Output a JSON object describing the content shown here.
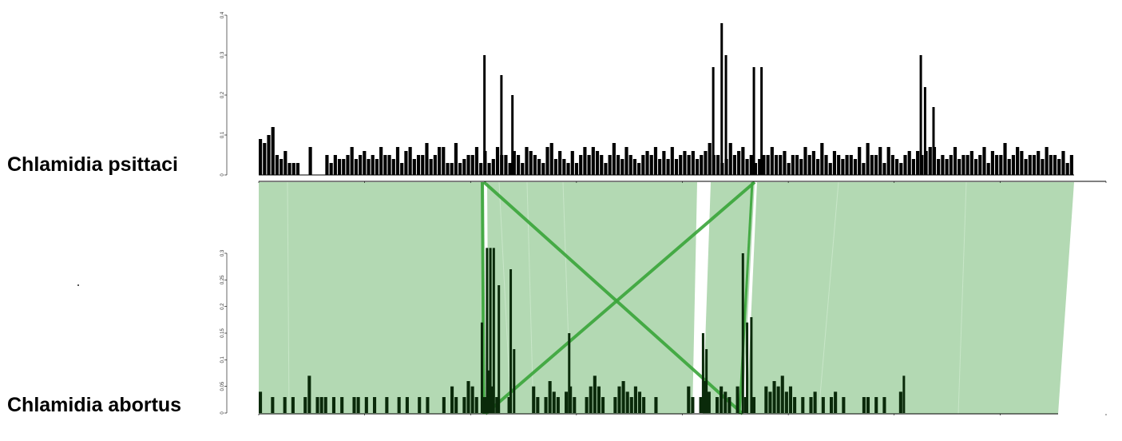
{
  "genomes": {
    "top": {
      "name": "Chlamidia psittaci"
    },
    "bottom": {
      "name": "Chlamidia abortus"
    }
  },
  "colors": {
    "block_fill": "#b3d9b3",
    "inversion_line": "#3aa53a",
    "top_bars": "#000000",
    "bottom_bars": "#0a2a0a",
    "axis": "#000000"
  },
  "chart_data": [
    {
      "type": "bar",
      "series": [
        {
          "name": "Chlamidia psittaci",
          "values": [
            0.09,
            0.08,
            0.1,
            0.12,
            0.05,
            0.04,
            0.06,
            0.03,
            0.03,
            0.03,
            0.0,
            0.0,
            0.07,
            0.0,
            0.0,
            0.0,
            0.05,
            0.03,
            0.05,
            0.04,
            0.04,
            0.05,
            0.07,
            0.04,
            0.05,
            0.06,
            0.04,
            0.05,
            0.04,
            0.07,
            0.05,
            0.05,
            0.04,
            0.07,
            0.03,
            0.06,
            0.07,
            0.04,
            0.05,
            0.05,
            0.08,
            0.04,
            0.05,
            0.07,
            0.07,
            0.03,
            0.03,
            0.08,
            0.03,
            0.04,
            0.05,
            0.05,
            0.07,
            0.03,
            0.06,
            0.03,
            0.04,
            0.07,
            0.05,
            0.05,
            0.03,
            0.06,
            0.05,
            0.03,
            0.07,
            0.06,
            0.05,
            0.04,
            0.03,
            0.07,
            0.08,
            0.04,
            0.06,
            0.04,
            0.03,
            0.06,
            0.03,
            0.05,
            0.07,
            0.05,
            0.07,
            0.06,
            0.05,
            0.03,
            0.05,
            0.08,
            0.05,
            0.04,
            0.07,
            0.05,
            0.04,
            0.03,
            0.05,
            0.06,
            0.05,
            0.07,
            0.04,
            0.06,
            0.04,
            0.07,
            0.04,
            0.05,
            0.06,
            0.05,
            0.06,
            0.04,
            0.05,
            0.06,
            0.08,
            0.05,
            0.05,
            0.03,
            0.04,
            0.08,
            0.05,
            0.06,
            0.07,
            0.04,
            0.05,
            0.03,
            0.04,
            0.05,
            0.05,
            0.07,
            0.05,
            0.05,
            0.06,
            0.03,
            0.05,
            0.05,
            0.04,
            0.07,
            0.05,
            0.06,
            0.04,
            0.08,
            0.05,
            0.03,
            0.06,
            0.05,
            0.04,
            0.05,
            0.05,
            0.04,
            0.07,
            0.03,
            0.08,
            0.05,
            0.05,
            0.07,
            0.03,
            0.07,
            0.05,
            0.04,
            0.03,
            0.05,
            0.06,
            0.04,
            0.06,
            0.05,
            0.06,
            0.07,
            0.07,
            0.04,
            0.05,
            0.04,
            0.05,
            0.07,
            0.04,
            0.05,
            0.05,
            0.06,
            0.04,
            0.05,
            0.07,
            0.03,
            0.06,
            0.05,
            0.05,
            0.08,
            0.04,
            0.05,
            0.07,
            0.06,
            0.04,
            0.05,
            0.05,
            0.06,
            0.04,
            0.07,
            0.05,
            0.05,
            0.04,
            0.06,
            0.03,
            0.05
          ]
        }
      ],
      "ylim": [
        0,
        0.4
      ],
      "yticks": [
        "0",
        "0.1",
        "0.2",
        "0.3",
        "0.4"
      ],
      "peaks": [
        {
          "x_frac": 0.265,
          "value": 0.3
        },
        {
          "x_frac": 0.285,
          "value": 0.25
        },
        {
          "x_frac": 0.298,
          "value": 0.2
        },
        {
          "x_frac": 0.535,
          "value": 0.27
        },
        {
          "x_frac": 0.545,
          "value": 0.38
        },
        {
          "x_frac": 0.55,
          "value": 0.3
        },
        {
          "x_frac": 0.583,
          "value": 0.27
        },
        {
          "x_frac": 0.592,
          "value": 0.27
        },
        {
          "x_frac": 0.78,
          "value": 0.3
        },
        {
          "x_frac": 0.785,
          "value": 0.22
        },
        {
          "x_frac": 0.795,
          "value": 0.17
        }
      ]
    },
    {
      "type": "bar",
      "series": [
        {
          "name": "Chlamidia abortus",
          "values": [
            0.04,
            0.0,
            0.0,
            0.03,
            0.0,
            0.0,
            0.03,
            0.0,
            0.03,
            0.0,
            0.0,
            0.03,
            0.07,
            0.0,
            0.03,
            0.03,
            0.03,
            0.0,
            0.03,
            0.0,
            0.03,
            0.0,
            0.0,
            0.03,
            0.03,
            0.0,
            0.03,
            0.0,
            0.03,
            0.0,
            0.0,
            0.03,
            0.0,
            0.0,
            0.03,
            0.0,
            0.03,
            0.0,
            0.0,
            0.03,
            0.0,
            0.03,
            0.0,
            0.0,
            0.0,
            0.03,
            0.0,
            0.05,
            0.03,
            0.0,
            0.03,
            0.06,
            0.05,
            0.03,
            0.0,
            0.03,
            0.08,
            0.05,
            0.03,
            0.0,
            0.0,
            0.03,
            0.0,
            0.0,
            0.0,
            0.0,
            0.0,
            0.05,
            0.03,
            0.0,
            0.03,
            0.06,
            0.04,
            0.03,
            0.0,
            0.04,
            0.05,
            0.03,
            0.0,
            0.0,
            0.03,
            0.05,
            0.07,
            0.05,
            0.03,
            0.0,
            0.0,
            0.03,
            0.05,
            0.06,
            0.04,
            0.03,
            0.05,
            0.04,
            0.03,
            0.0,
            0.0,
            0.03,
            0.0,
            0.0,
            0.0,
            0.0,
            0.0,
            0.0,
            0.0,
            0.05,
            0.03,
            0.0,
            0.03,
            0.06,
            0.04,
            0.0,
            0.03,
            0.05,
            0.04,
            0.03,
            0.0,
            0.05,
            0.0,
            0.03,
            0.0,
            0.03,
            0.0,
            0.0,
            0.05,
            0.04,
            0.06,
            0.05,
            0.07,
            0.04,
            0.05,
            0.03,
            0.0,
            0.03,
            0.0,
            0.03,
            0.04,
            0.0,
            0.03,
            0.0,
            0.03,
            0.04,
            0.0,
            0.03,
            0.0,
            0.0,
            0.0,
            0.0,
            0.03,
            0.03,
            0.0,
            0.03,
            0.0,
            0.03,
            0.0,
            0.0,
            0.0,
            0.04,
            0.0,
            0.0,
            0.0,
            0.0,
            0.0,
            0.0,
            0.0,
            0.0,
            0.0,
            0.0,
            0.0,
            0.0,
            0.0,
            0.0,
            0.0,
            0.0,
            0.0,
            0.0,
            0.0,
            0.0,
            0.0,
            0.0,
            0.0,
            0.0,
            0.0,
            0.0,
            0.0,
            0.0,
            0.0,
            0.0,
            0.0,
            0.0,
            0.0,
            0.0,
            0.0,
            0.0,
            0.0,
            0.0
          ]
        }
      ],
      "ylim": [
        0,
        0.3
      ],
      "yticks": [
        "0",
        "0.05",
        "0.1",
        "0.15",
        "0.2",
        "0.25",
        "0.3"
      ],
      "peaks": [
        {
          "x_frac": 0.262,
          "value": 0.17
        },
        {
          "x_frac": 0.268,
          "value": 0.31
        },
        {
          "x_frac": 0.272,
          "value": 0.31
        },
        {
          "x_frac": 0.276,
          "value": 0.31
        },
        {
          "x_frac": 0.282,
          "value": 0.24
        },
        {
          "x_frac": 0.296,
          "value": 0.27
        },
        {
          "x_frac": 0.3,
          "value": 0.12
        },
        {
          "x_frac": 0.365,
          "value": 0.15
        },
        {
          "x_frac": 0.523,
          "value": 0.15
        },
        {
          "x_frac": 0.527,
          "value": 0.12
        },
        {
          "x_frac": 0.57,
          "value": 0.3
        },
        {
          "x_frac": 0.575,
          "value": 0.17
        },
        {
          "x_frac": 0.58,
          "value": 0.18
        },
        {
          "x_frac": 0.76,
          "value": 0.07
        }
      ]
    }
  ]
}
